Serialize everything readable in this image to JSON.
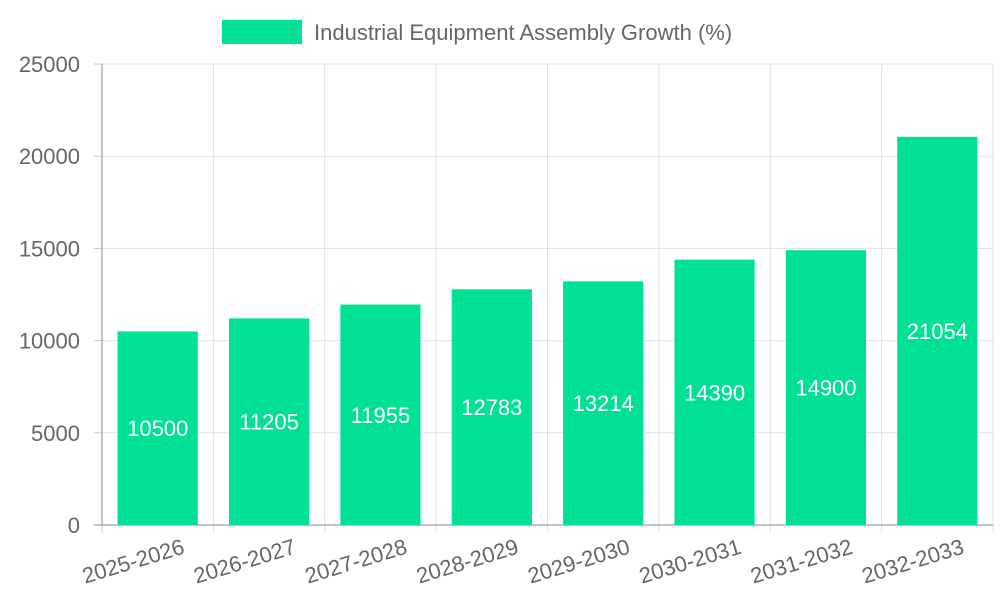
{
  "chart_data": {
    "type": "bar",
    "categories": [
      "2025-2026",
      "2026-2027",
      "2027-2028",
      "2028-2029",
      "2029-2030",
      "2030-2031",
      "2031-2032",
      "2032-2033"
    ],
    "series": [
      {
        "name": "Industrial Equipment Assembly Growth (%)",
        "values": [
          10500,
          11205,
          11955,
          12783,
          13214,
          14390,
          14900,
          21054
        ],
        "color": "#00e096"
      }
    ],
    "ylim": [
      0,
      25000
    ],
    "yticks": [
      0,
      5000,
      10000,
      15000,
      20000,
      25000
    ],
    "grid": true,
    "legend_position": "top-center",
    "data_labels": true,
    "x_tick_rotation": "angled"
  }
}
